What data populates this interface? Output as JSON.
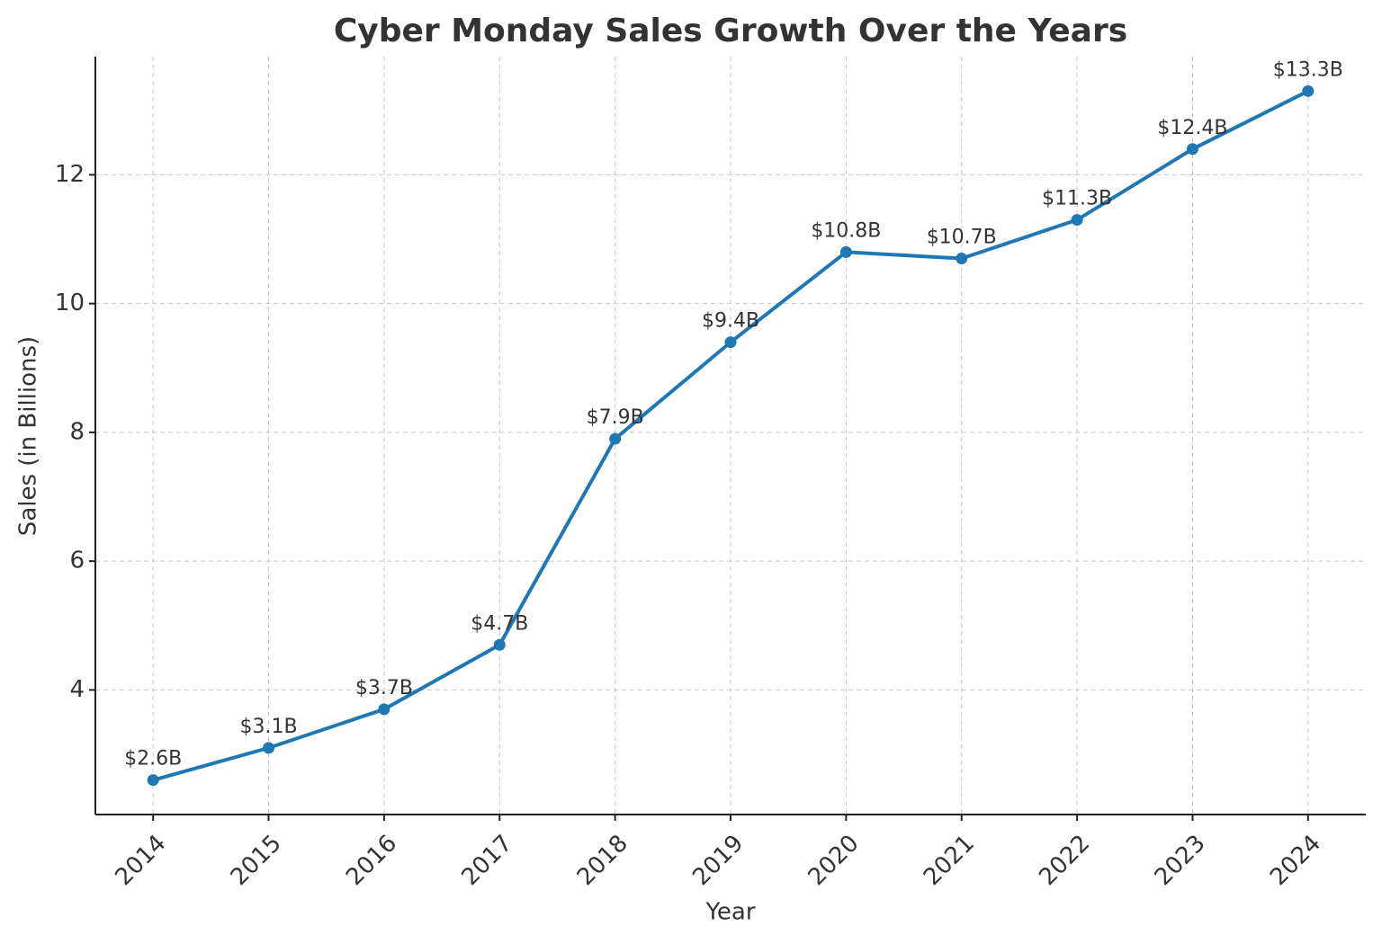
{
  "chart_data": {
    "type": "line",
    "title": "Cyber Monday Sales Growth Over the Years",
    "x_label": "Year",
    "y_label": "Sales (in Billions)",
    "x": [
      2014,
      2015,
      2016,
      2017,
      2018,
      2019,
      2020,
      2021,
      2022,
      2023,
      2024
    ],
    "series": [
      {
        "name": "Sales",
        "color": "#1f77b4",
        "values": [
          2.6,
          3.1,
          3.7,
          4.7,
          7.9,
          9.4,
          10.8,
          10.7,
          11.3,
          12.4,
          13.3
        ],
        "value_labels": [
          "$2.6B",
          "$3.1B",
          "$3.7B",
          "$4.7B",
          "$7.9B",
          "$9.4B",
          "$10.8B",
          "$10.7B",
          "$11.3B",
          "$12.4B",
          "$13.3B"
        ]
      }
    ],
    "xlim": [
      2013.5,
      2024.5
    ],
    "xticks": [
      2014,
      2015,
      2016,
      2017,
      2018,
      2019,
      2020,
      2021,
      2022,
      2023,
      2024
    ],
    "ylim": [
      2.065,
      13.835
    ],
    "yticks": [
      4,
      6,
      8,
      10,
      12
    ],
    "grid": true
  }
}
